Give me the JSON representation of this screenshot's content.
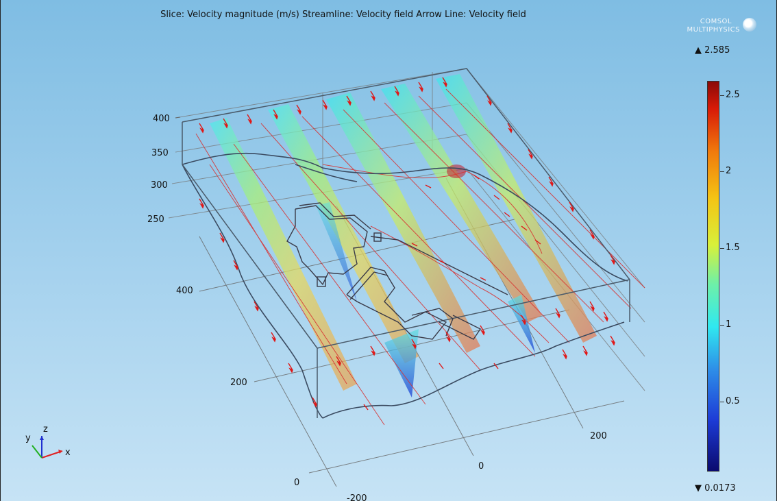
{
  "plot": {
    "title": "Slice: Velocity magnitude (m/s)  Streamline: Velocity field  Arrow Line: Velocity field"
  },
  "logo": {
    "line1": "COMSOL",
    "line2": "MULTIPHYSICS"
  },
  "colorbar": {
    "max_label": "▲ 2.585",
    "min_label": "▼ 0.0173",
    "ticks": [
      "2.5",
      "2",
      "1.5",
      "1",
      "0.5"
    ]
  },
  "axes": {
    "z_ticks": [
      "400",
      "350",
      "300",
      "250"
    ],
    "y_ticks": [
      "400",
      "200",
      "0"
    ],
    "x_ticks": [
      "-200",
      "0",
      "200"
    ]
  },
  "triad": {
    "x": "x",
    "y": "y",
    "z": "z"
  },
  "colors": {
    "background_top": "#7fbde3",
    "background_bottom": "#c6e3f5",
    "arrow": "#e01818",
    "streamline": "#d93030",
    "geometry": "#444444"
  }
}
